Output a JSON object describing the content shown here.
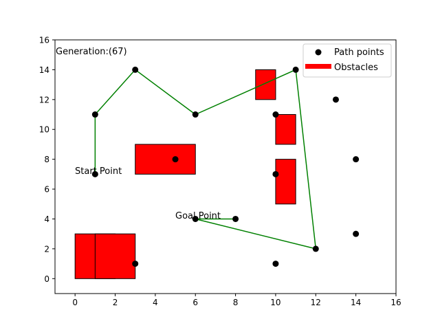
{
  "chart_data": {
    "type": "scatter",
    "annotation_generation": "Generation:(67)",
    "annotation_start": "Start Point",
    "annotation_goal": "Goal Point",
    "xlim": [
      -1,
      16
    ],
    "ylim": [
      -1,
      16
    ],
    "xticks": [
      0,
      2,
      4,
      6,
      8,
      10,
      12,
      14,
      16
    ],
    "yticks": [
      0,
      2,
      4,
      6,
      8,
      10,
      12,
      14,
      16
    ],
    "grid": false,
    "legend_position": "top-right",
    "legend": {
      "path_points_label": "Path points",
      "obstacles_label": "Obstacles"
    },
    "colors": {
      "points": "#000000",
      "path": "#008000",
      "obstacles": "#ff0000"
    },
    "path_points": [
      [
        3,
        14
      ],
      [
        11,
        14
      ],
      [
        13,
        12
      ],
      [
        1,
        11
      ],
      [
        6,
        11
      ],
      [
        10,
        11
      ],
      [
        5,
        8
      ],
      [
        14,
        8
      ],
      [
        1,
        7
      ],
      [
        10,
        7
      ],
      [
        6,
        4
      ],
      [
        8,
        4
      ],
      [
        12,
        2
      ],
      [
        14,
        3
      ],
      [
        3,
        1
      ],
      [
        10,
        1
      ]
    ],
    "path": [
      [
        1,
        7
      ],
      [
        1,
        11
      ],
      [
        3,
        14
      ],
      [
        6,
        11
      ],
      [
        11,
        14
      ],
      [
        12,
        2
      ],
      [
        6,
        4
      ],
      [
        8,
        4
      ]
    ],
    "obstacles": [
      {
        "x": 9,
        "y": 12,
        "w": 1,
        "h": 2
      },
      {
        "x": 10,
        "y": 9,
        "w": 1,
        "h": 2
      },
      {
        "x": 10,
        "y": 5,
        "w": 1,
        "h": 3
      },
      {
        "x": 3,
        "y": 7,
        "w": 3,
        "h": 2
      },
      {
        "x": 0,
        "y": 0,
        "w": 2,
        "h": 3
      },
      {
        "x": 1,
        "y": 0,
        "w": 2,
        "h": 3
      }
    ]
  }
}
